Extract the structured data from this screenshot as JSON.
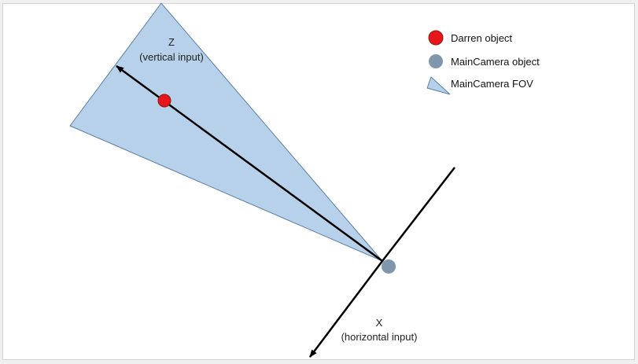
{
  "diagram": {
    "z_axis": {
      "name": "Z",
      "caption": "(vertical input)"
    },
    "x_axis": {
      "name": "X",
      "caption": "(horizontal input)"
    }
  },
  "legend": {
    "darren": {
      "label": "Darren object",
      "color": "#e8151b"
    },
    "camera": {
      "label": "MainCamera object",
      "color": "#7f96ad"
    },
    "fov": {
      "label": "MainCamera FOV",
      "color": "#b7d1ea"
    }
  }
}
